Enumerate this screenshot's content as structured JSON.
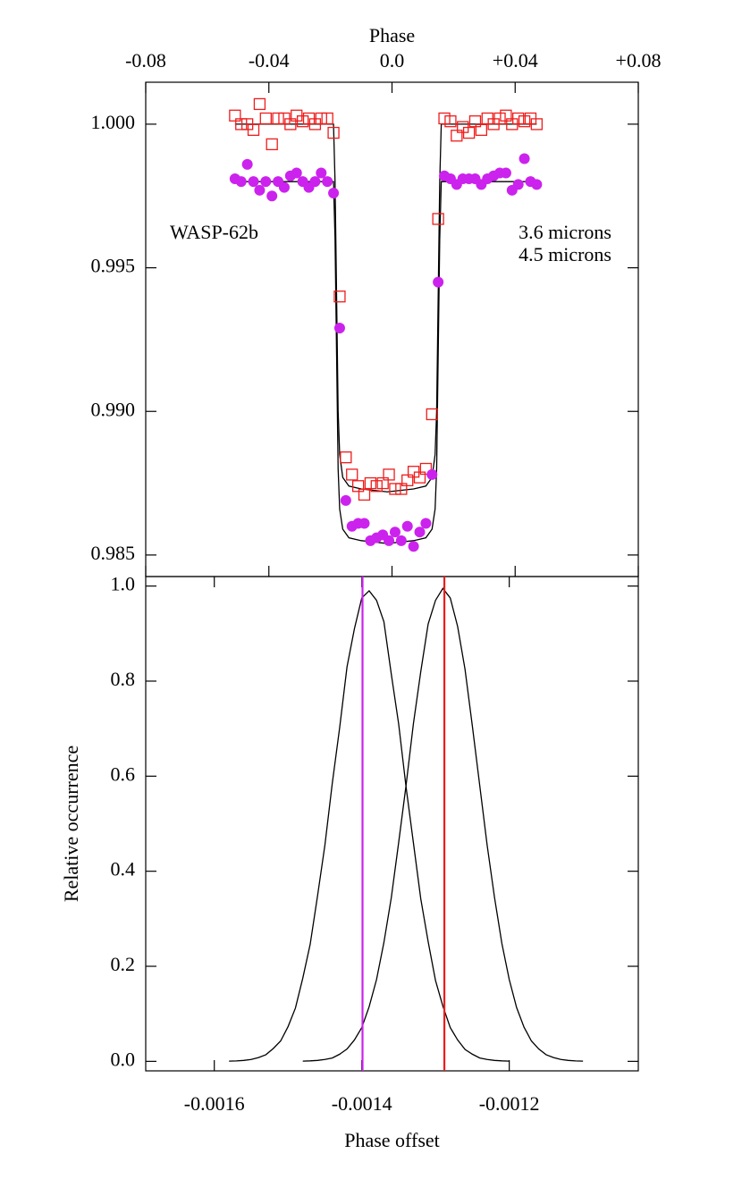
{
  "chart_data": [
    {
      "type": "scatter",
      "xlabel": "Phase",
      "xaxis": "top",
      "annotation": "WASP-62b",
      "xlim": [
        -0.08,
        0.08
      ],
      "xticks": [
        -0.08,
        -0.04,
        {
          "value": 0,
          "label": "0.0"
        },
        {
          "value": 0.04,
          "label": "+0.04"
        },
        {
          "value": 0.08,
          "label": "+0.08"
        }
      ],
      "ylim": [
        0.98425,
        1.00146
      ],
      "yticks": [
        {
          "value": 0.985,
          "label": "0.985"
        },
        {
          "value": 0.99,
          "label": "0.990"
        },
        {
          "value": 0.995,
          "label": "0.995"
        },
        {
          "value": 1,
          "label": "1.000"
        }
      ],
      "series": [
        {
          "name": "3.6 microns",
          "color": "#ee1c1c",
          "marker": "square",
          "x": [
            -0.051,
            -0.049,
            -0.047,
            -0.045,
            -0.043,
            -0.041,
            -0.039,
            -0.037,
            -0.035,
            -0.033,
            -0.031,
            -0.029,
            -0.027,
            -0.025,
            -0.023,
            -0.021,
            -0.019,
            -0.017,
            -0.015,
            -0.013,
            -0.011,
            -0.009,
            -0.007,
            -0.005,
            -0.003,
            -0.001,
            0.001,
            0.003,
            0.005,
            0.007,
            0.009,
            0.011,
            0.013,
            0.015,
            0.017,
            0.019,
            0.021,
            0.023,
            0.025,
            0.027,
            0.029,
            0.031,
            0.033,
            0.035,
            0.037,
            0.039,
            0.041,
            0.043,
            0.045,
            0.047
          ],
          "values": [
            1.0003,
            1.0,
            1.0,
            0.9998,
            1.0007,
            1.0002,
            0.9993,
            1.0002,
            1.0002,
            1.0,
            1.0003,
            1.0001,
            1.0002,
            1.0,
            1.0002,
            1.0002,
            0.9997,
            0.994,
            0.9884,
            0.9878,
            0.9874,
            0.9871,
            0.9875,
            0.9874,
            0.9875,
            0.9878,
            0.9873,
            0.9873,
            0.9876,
            0.9879,
            0.9877,
            0.988,
            0.9899,
            0.9967,
            1.0002,
            1.0001,
            0.9996,
            0.9999,
            0.9997,
            1.0001,
            0.9998,
            1.0002,
            1.0,
            1.0002,
            1.0003,
            1.0,
            1.0002,
            1.0001,
            1.0002,
            1.0
          ]
        },
        {
          "name": "4.5 microns",
          "color": "#cc22ee",
          "marker": "circle",
          "x": [
            -0.051,
            -0.049,
            -0.047,
            -0.045,
            -0.043,
            -0.041,
            -0.039,
            -0.037,
            -0.035,
            -0.033,
            -0.031,
            -0.029,
            -0.027,
            -0.025,
            -0.023,
            -0.021,
            -0.019,
            -0.017,
            -0.015,
            -0.013,
            -0.011,
            -0.009,
            -0.007,
            -0.005,
            -0.003,
            -0.001,
            0.001,
            0.003,
            0.005,
            0.007,
            0.009,
            0.011,
            0.013,
            0.015,
            0.017,
            0.019,
            0.021,
            0.023,
            0.025,
            0.027,
            0.029,
            0.031,
            0.033,
            0.035,
            0.037,
            0.039,
            0.041,
            0.043,
            0.045,
            0.047
          ],
          "values": [
            0.9981,
            0.998,
            0.9986,
            0.998,
            0.9977,
            0.998,
            0.9975,
            0.998,
            0.9978,
            0.9982,
            0.9983,
            0.998,
            0.9978,
            0.998,
            0.9983,
            0.998,
            0.9976,
            0.9929,
            0.9869,
            0.986,
            0.9861,
            0.9861,
            0.9855,
            0.9856,
            0.9857,
            0.9855,
            0.9858,
            0.9855,
            0.986,
            0.9853,
            0.9858,
            0.9861,
            0.9878,
            0.9945,
            0.9982,
            0.9981,
            0.9979,
            0.9981,
            0.9981,
            0.9981,
            0.9979,
            0.9981,
            0.9982,
            0.9983,
            0.9983,
            0.9977,
            0.9979,
            0.9988,
            0.998,
            0.9979
          ]
        }
      ],
      "models": [
        {
          "color": "#000000",
          "x": [
            -0.051,
            -0.019,
            -0.0185,
            -0.018,
            -0.0175,
            -0.017,
            -0.016,
            -0.014,
            -0.01,
            -0.0015,
            0.007,
            0.011,
            0.013,
            0.014,
            0.0145,
            0.015,
            0.0155,
            0.016,
            0.047
          ],
          "values": [
            1.0,
            1.0,
            0.998,
            0.994,
            0.99,
            0.9885,
            0.9877,
            0.9874,
            0.9873,
            0.9872,
            0.9873,
            0.9874,
            0.9877,
            0.9885,
            0.99,
            0.994,
            0.998,
            1.0,
            1.0
          ]
        },
        {
          "color": "#000000",
          "x": [
            -0.051,
            -0.019,
            -0.0185,
            -0.018,
            -0.0175,
            -0.017,
            -0.016,
            -0.014,
            -0.01,
            -0.0015,
            0.007,
            0.011,
            0.013,
            0.014,
            0.0145,
            0.015,
            0.0155,
            0.016,
            0.047
          ],
          "values": [
            0.998,
            0.998,
            0.996,
            0.992,
            0.988,
            0.9866,
            0.9859,
            0.9856,
            0.9855,
            0.9854,
            0.9855,
            0.9856,
            0.9859,
            0.9866,
            0.988,
            0.992,
            0.996,
            0.998,
            0.998
          ]
        }
      ]
    },
    {
      "type": "line",
      "xlabel": "Phase offset",
      "ylabel": "Relative occurrence",
      "xaxis": "bottom",
      "xlim": [
        -0.001693,
        -0.001025
      ],
      "xticks": [
        -0.0016,
        -0.0014,
        -0.0012
      ],
      "ylim": [
        -0.02,
        1.02
      ],
      "yticks": [
        {
          "value": 0,
          "label": "0.0"
        },
        0.2,
        0.4,
        0.6,
        0.8,
        {
          "value": 1,
          "label": "1.0"
        }
      ],
      "series": [
        {
          "color": "#000000",
          "x": [
            -0.00158,
            -0.00157,
            -0.00156,
            -0.00155,
            -0.00154,
            -0.00153,
            -0.00152,
            -0.00151,
            -0.0015,
            -0.00149,
            -0.00148,
            -0.00147,
            -0.00146,
            -0.00145,
            -0.00144,
            -0.00143,
            -0.00142,
            -0.00141,
            -0.0014,
            -0.00139,
            -0.00138,
            -0.00137,
            -0.00136,
            -0.00135,
            -0.00134,
            -0.00133,
            -0.00132,
            -0.00131,
            -0.0013,
            -0.00129,
            -0.00128,
            -0.00127,
            -0.00126,
            -0.00125,
            -0.00124,
            -0.00123,
            -0.00122,
            -0.00121,
            -0.0012
          ],
          "values": [
            0.0004,
            0.0009,
            0.002,
            0.004,
            0.008,
            0.014,
            0.027,
            0.043,
            0.073,
            0.112,
            0.175,
            0.246,
            0.348,
            0.455,
            0.585,
            0.702,
            0.83,
            0.91,
            0.975,
            0.99,
            0.97,
            0.925,
            0.815,
            0.71,
            0.578,
            0.46,
            0.342,
            0.252,
            0.17,
            0.116,
            0.071,
            0.045,
            0.025,
            0.015,
            0.007,
            0.004,
            0.002,
            0.001,
            0.0004
          ]
        },
        {
          "color": "#000000",
          "x": [
            -0.00148,
            -0.00147,
            -0.00146,
            -0.00145,
            -0.00144,
            -0.00143,
            -0.00142,
            -0.00141,
            -0.0014,
            -0.00139,
            -0.00138,
            -0.00137,
            -0.00136,
            -0.00135,
            -0.00134,
            -0.00133,
            -0.00132,
            -0.00131,
            -0.0013,
            -0.00129,
            -0.00128,
            -0.00127,
            -0.00126,
            -0.00125,
            -0.00124,
            -0.00123,
            -0.00122,
            -0.00121,
            -0.0012,
            -0.00119,
            -0.00118,
            -0.00117,
            -0.00116,
            -0.00115,
            -0.00114,
            -0.00113,
            -0.00112,
            -0.00111,
            -0.0011
          ],
          "values": [
            0.0004,
            0.001,
            0.002,
            0.004,
            0.007,
            0.015,
            0.026,
            0.045,
            0.071,
            0.115,
            0.172,
            0.25,
            0.344,
            0.46,
            0.58,
            0.71,
            0.82,
            0.92,
            0.97,
            0.995,
            0.975,
            0.915,
            0.825,
            0.705,
            0.58,
            0.455,
            0.345,
            0.248,
            0.172,
            0.113,
            0.072,
            0.043,
            0.026,
            0.014,
            0.008,
            0.004,
            0.002,
            0.0009,
            0.0004
          ]
        }
      ],
      "vlines": [
        {
          "x": -0.001399,
          "color": "#cc22ee"
        },
        {
          "x": -0.001288,
          "color": "#ee1c1c"
        }
      ]
    }
  ]
}
